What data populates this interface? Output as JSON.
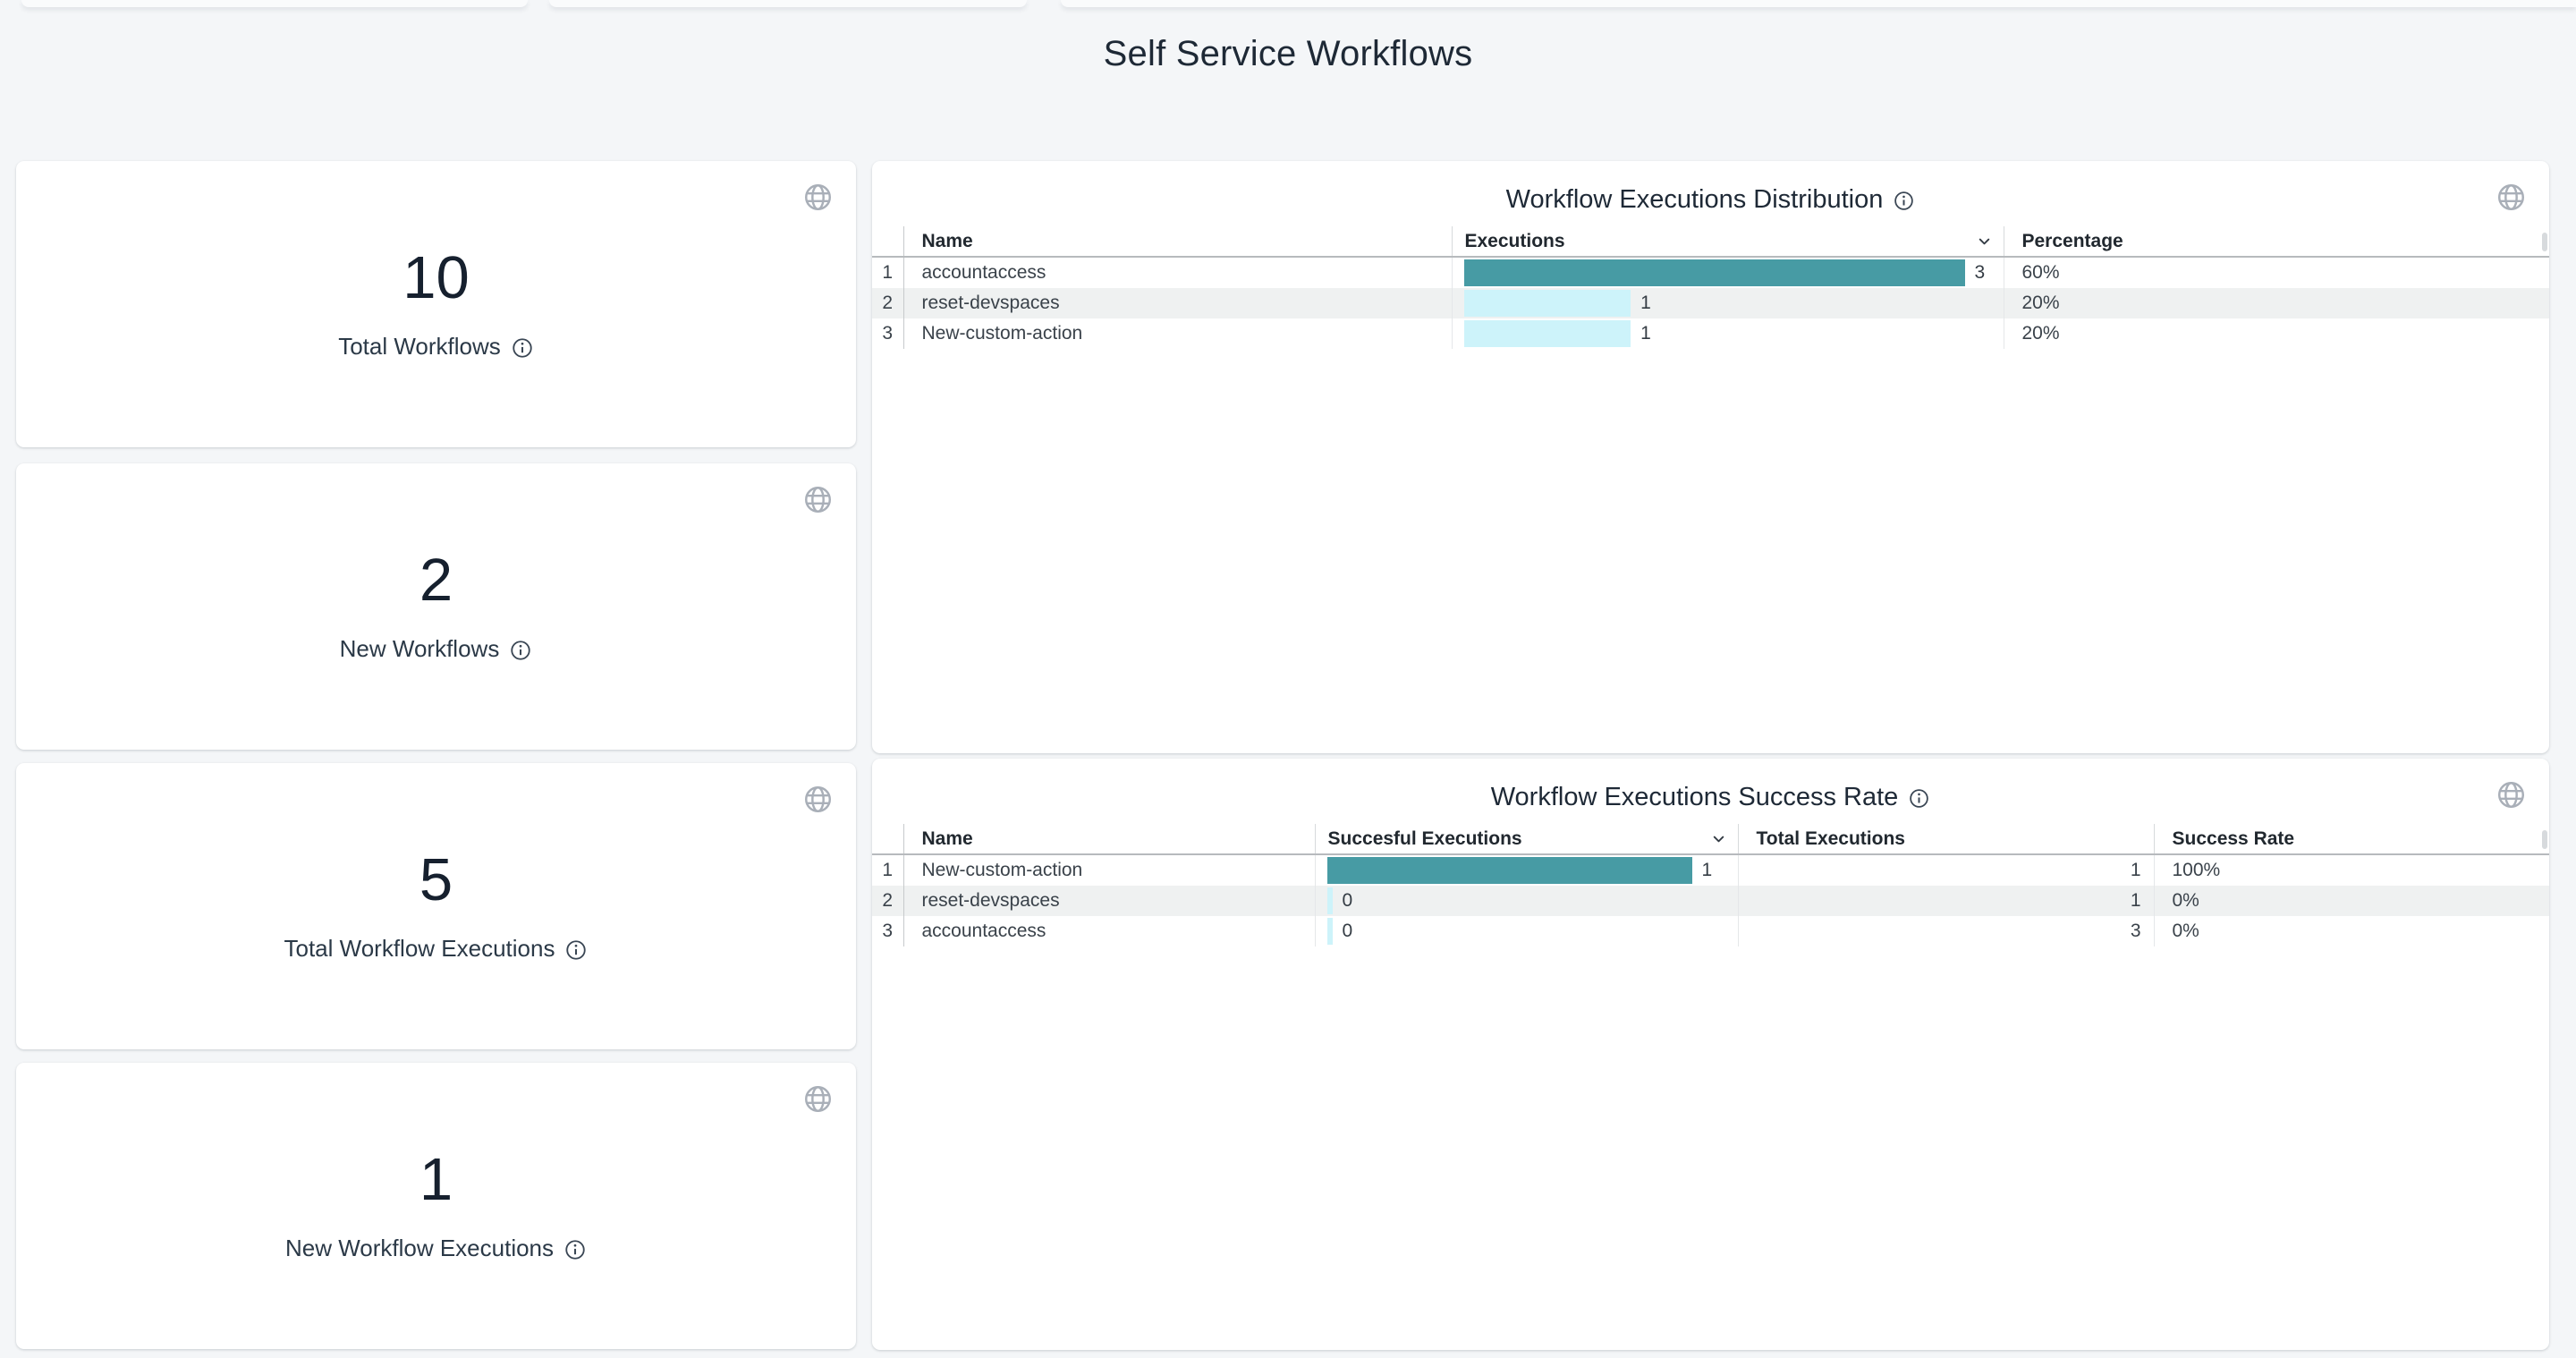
{
  "page": {
    "title": "Self Service Workflows"
  },
  "colors": {
    "background": "#f4f6f8",
    "bar_primary_teal": "#479ba4",
    "bar_secondary_cyan": "#cdf3fa",
    "zebra_row": "#eff1f1",
    "title_text": "#1e2936"
  },
  "stat_cards": [
    {
      "value": "10",
      "label": "Total Workflows"
    },
    {
      "value": "2",
      "label": "New Workflows"
    },
    {
      "value": "5",
      "label": "Total Workflow Executions"
    },
    {
      "value": "1",
      "label": "New Workflow Executions"
    }
  ],
  "tables": [
    {
      "title": "Workflow Executions Distribution",
      "columns": [
        {
          "key": "name",
          "label": "Name",
          "type": "text"
        },
        {
          "key": "executions",
          "label": "Executions",
          "type": "bar",
          "sortable": true
        },
        {
          "key": "percentage",
          "label": "Percentage",
          "type": "text"
        }
      ],
      "rows": [
        {
          "index": "1",
          "name": "accountaccess",
          "executions": 3,
          "percentage": "60%",
          "bar_color": "#479ba4"
        },
        {
          "index": "2",
          "name": "reset-devspaces",
          "executions": 1,
          "percentage": "20%",
          "bar_color": "#cdf3fa"
        },
        {
          "index": "3",
          "name": "New-custom-action",
          "executions": 1,
          "percentage": "20%",
          "bar_color": "#cdf3fa"
        }
      ]
    },
    {
      "title": "Workflow Executions Success Rate",
      "columns": [
        {
          "key": "name",
          "label": "Name",
          "type": "text"
        },
        {
          "key": "successful_executions",
          "label": "Succesful Executions",
          "type": "bar",
          "sortable": true
        },
        {
          "key": "total_executions",
          "label": "Total Executions",
          "type": "text",
          "align": "right"
        },
        {
          "key": "success_rate",
          "label": "Success Rate",
          "type": "text"
        }
      ],
      "rows": [
        {
          "index": "1",
          "name": "New-custom-action",
          "successful_executions": 1,
          "total_executions": 1,
          "success_rate": "100%",
          "bar_color": "#479ba4"
        },
        {
          "index": "2",
          "name": "reset-devspaces",
          "successful_executions": 0,
          "total_executions": 1,
          "success_rate": "0%",
          "bar_color": "#cdf3fa"
        },
        {
          "index": "3",
          "name": "accountaccess",
          "successful_executions": 0,
          "total_executions": 3,
          "success_rate": "0%",
          "bar_color": "#cdf3fa"
        }
      ]
    }
  ]
}
